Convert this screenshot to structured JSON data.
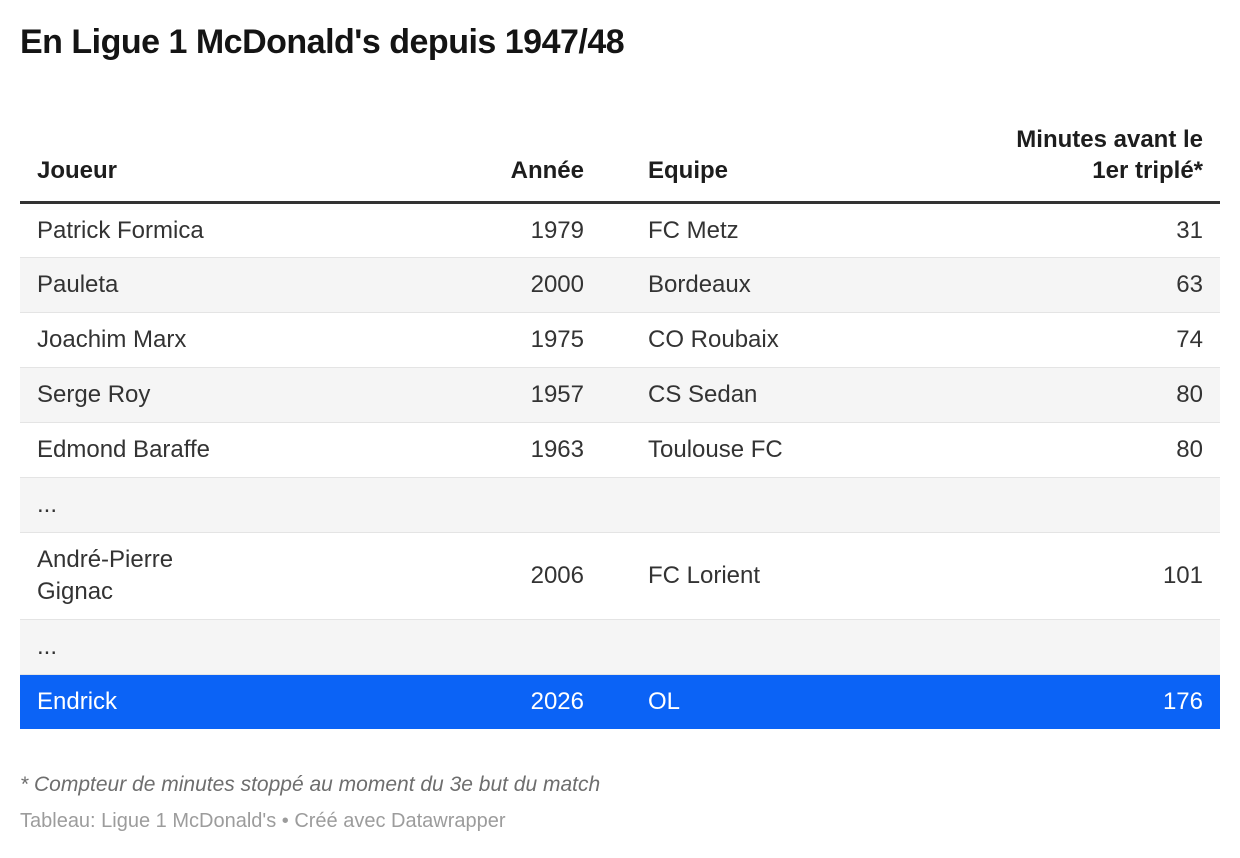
{
  "title": "En Ligue 1 McDonald's depuis 1947/48",
  "chart_data": {
    "type": "table",
    "title": "En Ligue 1 McDonald's depuis 1947/48",
    "columns": [
      "Joueur",
      "Année",
      "Equipe",
      "Minutes avant le\n1er triplé*"
    ],
    "column_alignments": [
      "left",
      "right",
      "left",
      "right"
    ],
    "rows": [
      [
        "Patrick Formica",
        "1979",
        "FC Metz",
        "31"
      ],
      [
        "Pauleta",
        "2000",
        "Bordeaux",
        "63"
      ],
      [
        "Joachim Marx",
        "1975",
        "CO Roubaix",
        "74"
      ],
      [
        "Serge Roy",
        "1957",
        "CS Sedan",
        "80"
      ],
      [
        "Edmond Baraffe",
        "1963",
        "Toulouse FC",
        "80"
      ],
      [
        "...",
        "",
        "",
        ""
      ],
      [
        "André-Pierre\nGignac",
        "2006",
        "FC Lorient",
        "101"
      ],
      [
        "...",
        "",
        "",
        ""
      ],
      [
        "Endrick",
        "2026",
        "OL",
        "176"
      ]
    ],
    "highlighted_row_index": 8,
    "zebra_striping": true,
    "legend_position": "none",
    "grid": false
  },
  "footnote": "* Compteur de minutes stoppé au moment du 3e but du match",
  "attribution": "Tableau: Ligue 1 McDonald's • Créé avec Datawrapper",
  "colors": {
    "highlight_row_bg": "#0b63f6",
    "highlight_row_text": "#ffffff",
    "alt_row_bg": "#f5f5f5",
    "row_border": "#e4e4e4",
    "header_border": "#333333",
    "body_text": "#333333",
    "title_text": "#141414",
    "footnote_text": "#6e6e6e",
    "attribution_text": "#9c9c9c"
  }
}
